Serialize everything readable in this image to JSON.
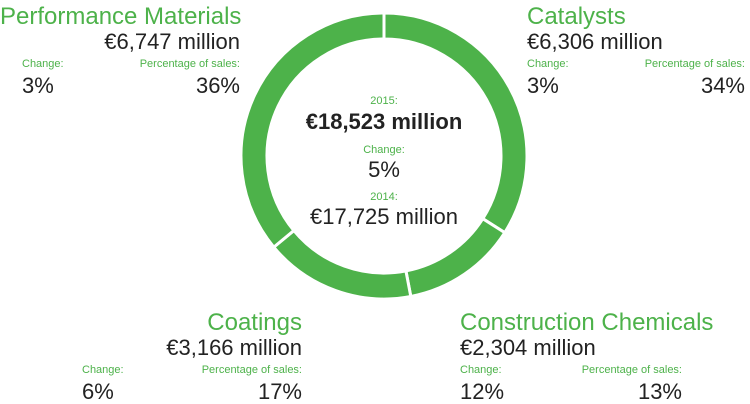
{
  "chart_data": {
    "type": "pie",
    "style": "donut",
    "categories": [
      "Catalysts",
      "Construction Chemicals",
      "Coatings",
      "Performance Materials"
    ],
    "values": [
      34,
      13,
      17,
      36
    ],
    "colors": [
      "#4db24a",
      "#4db24a",
      "#4db24a",
      "#4db24a"
    ],
    "separator_color": "#ffffff"
  },
  "center": {
    "year_2015_label": "2015:",
    "total_2015": "€18,523 million",
    "change_label": "Change:",
    "change_value": "5%",
    "year_2014_label": "2014:",
    "total_2014": "€17,725 million"
  },
  "segments": {
    "performance_materials": {
      "name": "Performance Materials",
      "sales": "€6,747 million",
      "change_label": "Change:",
      "change": "3%",
      "share_label": "Percentage of sales:",
      "share": "36%"
    },
    "catalysts": {
      "name": "Catalysts",
      "sales": "€6,306 million",
      "change_label": "Change:",
      "change": "3%",
      "share_label": "Percentage of sales:",
      "share": "34%"
    },
    "coatings": {
      "name": "Coatings",
      "sales": "€3,166 million",
      "change_label": "Change:",
      "change": "6%",
      "share_label": "Percentage of sales:",
      "share": "17%"
    },
    "construction_chemicals": {
      "name": "Construction Chemicals",
      "sales": "€2,304 million",
      "change_label": "Change:",
      "change": "12%",
      "share_label": "Percentage of sales:",
      "share": "13%"
    }
  }
}
